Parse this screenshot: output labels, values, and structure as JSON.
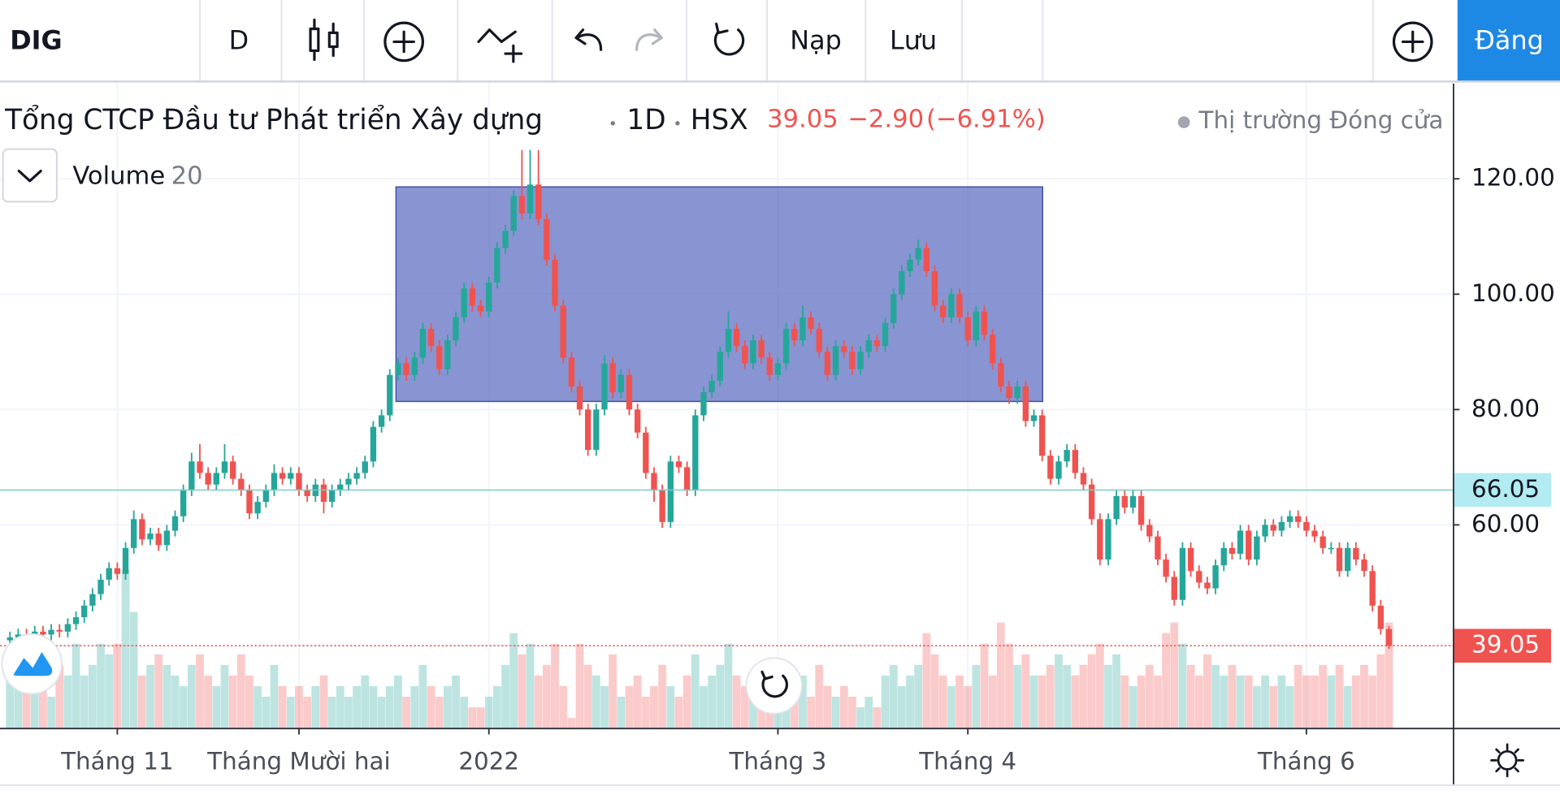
{
  "toolbar": {
    "symbol": "DIG",
    "interval": "D",
    "load": "Nạp",
    "save": "Lưu",
    "signin": "Đăng"
  },
  "chart_data": {
    "type": "candlestick",
    "title": "Tổng CTCP Đầu tư Phát triển Xây dựng",
    "interval": "1D",
    "exchange": "HSX",
    "last": "39.05",
    "change": "−2.90",
    "change_pct": "(−6.91%)",
    "market_status": "Thị trường Đóng cửa",
    "indicator": {
      "name": "Volume",
      "length": 20
    },
    "up_color": "#26a69a",
    "down_color": "#ef5350",
    "grid": true,
    "ylim": [
      24.7,
      136.7
    ],
    "yticks": [
      {
        "value": 60,
        "label": "60.00"
      },
      {
        "value": 80,
        "label": "80.00"
      },
      {
        "value": 100,
        "label": "100.00"
      },
      {
        "value": 120,
        "label": "120.00"
      }
    ],
    "price_lines": [
      {
        "value": 66.05,
        "color": "#80cbc4"
      },
      {
        "value": 39.05,
        "color": "#ef5350"
      }
    ],
    "rectangle": {
      "top": 118.6,
      "bottom": 81.4,
      "color": "#5c6bc0"
    },
    "categories": [
      null,
      null,
      null,
      null,
      null,
      null,
      null,
      null,
      null,
      null,
      null,
      null,
      null,
      "Tháng 11",
      null,
      null,
      null,
      null,
      null,
      null,
      null,
      null,
      null,
      null,
      null,
      null,
      null,
      null,
      null,
      null,
      null,
      null,
      null,
      null,
      null,
      "Tháng Mười hai",
      null,
      null,
      null,
      null,
      null,
      null,
      null,
      null,
      null,
      null,
      null,
      null,
      null,
      null,
      null,
      null,
      null,
      null,
      null,
      null,
      null,
      null,
      "2022",
      null,
      null,
      null,
      null,
      null,
      null,
      null,
      null,
      null,
      null,
      null,
      null,
      null,
      null,
      null,
      null,
      null,
      null,
      null,
      null,
      null,
      null,
      null,
      null,
      null,
      null,
      null,
      null,
      null,
      null,
      null,
      null,
      null,
      null,
      "Tháng 3",
      null,
      null,
      null,
      null,
      null,
      null,
      null,
      null,
      null,
      null,
      null,
      null,
      null,
      null,
      null,
      null,
      null,
      null,
      null,
      null,
      null,
      null,
      "Tháng 4",
      null,
      null,
      null,
      null,
      null,
      null,
      null,
      null,
      null,
      null,
      null,
      null,
      null,
      null,
      null,
      null,
      null,
      null,
      null,
      null,
      null,
      null,
      null,
      null,
      null,
      null,
      null,
      null,
      null,
      null,
      null,
      null,
      null,
      null,
      null,
      null,
      null,
      null,
      null,
      null,
      "Tháng 6",
      null,
      null,
      null,
      null,
      null,
      null,
      null,
      null,
      null,
      null
    ],
    "open": [
      40,
      40.5,
      41,
      40.8,
      41.5,
      41,
      41.8,
      41.5,
      42.8,
      44,
      46,
      48,
      50.5,
      52.5,
      51.5,
      56,
      61,
      57.5,
      58.5,
      56.5,
      59,
      61.5,
      66,
      71,
      69,
      67,
      69,
      71,
      68,
      66,
      62,
      64,
      66,
      69,
      68,
      69,
      66,
      65,
      67,
      64,
      66,
      67,
      68,
      69,
      71,
      77,
      79,
      86,
      88,
      86,
      89,
      94,
      91,
      87,
      92,
      96,
      101,
      98,
      97,
      102,
      108,
      111,
      117,
      114,
      119,
      113,
      106,
      98,
      89,
      84,
      80,
      73,
      80,
      88,
      83,
      86,
      80,
      76,
      69,
      66,
      60.5,
      71,
      70,
      66,
      79,
      83,
      85,
      90,
      94,
      91,
      88,
      92,
      89,
      86,
      88,
      94,
      92,
      96,
      94,
      90,
      86,
      91,
      90,
      87,
      90,
      92,
      91,
      95,
      100,
      104,
      106,
      108,
      104,
      98,
      96,
      100,
      96,
      92,
      97,
      93,
      88,
      84,
      82,
      84,
      78,
      79,
      72,
      68,
      71,
      73,
      69,
      67,
      61,
      54,
      61,
      65,
      63,
      65,
      60,
      58,
      54,
      51,
      47,
      56,
      52,
      50,
      49,
      53,
      56,
      55,
      59,
      54,
      58,
      60,
      59,
      60.5,
      61.5,
      60.5,
      59,
      58,
      56,
      56,
      52,
      56,
      54,
      52,
      46,
      41.95
    ],
    "high": [
      41.5,
      42,
      42,
      42.5,
      42.5,
      42.8,
      42.8,
      43.8,
      45,
      47,
      49,
      51.5,
      53.5,
      53.5,
      57,
      62.5,
      62,
      59.5,
      59.5,
      60,
      62.5,
      67,
      72.5,
      74,
      70,
      70,
      74,
      72,
      69,
      67,
      65,
      67,
      70.5,
      70,
      70,
      70,
      67,
      68,
      68,
      67,
      68,
      69,
      70,
      72,
      78,
      80,
      87,
      89,
      89,
      90,
      95,
      95,
      92,
      93,
      97,
      102,
      102,
      99,
      103,
      109,
      112,
      118,
      125,
      125,
      125,
      114,
      107,
      99,
      90,
      85,
      81,
      81,
      89.5,
      89,
      87,
      87,
      81,
      77,
      70,
      67,
      72,
      72,
      71,
      80,
      84,
      86,
      91,
      97,
      95,
      92,
      93,
      93,
      90,
      89,
      95,
      95,
      98,
      97,
      95,
      91,
      92,
      92,
      91,
      91,
      93,
      93,
      96,
      101,
      105,
      107,
      109.5,
      109,
      105,
      99,
      101,
      101,
      97,
      98,
      98,
      94,
      89,
      85,
      85,
      85,
      80,
      80,
      73,
      72,
      74,
      74,
      70,
      68,
      62,
      62,
      66,
      66,
      66,
      66,
      61,
      59,
      55,
      52,
      57,
      57,
      53,
      51,
      54,
      57,
      57,
      60,
      60,
      59,
      61,
      61,
      61.5,
      62.5,
      62.5,
      61.5,
      60,
      59,
      57,
      57,
      57,
      57,
      55,
      53,
      47,
      42.5
    ],
    "low": [
      39,
      39.5,
      39.8,
      39.8,
      40,
      40,
      40.5,
      40.5,
      41.8,
      43,
      45,
      47,
      49.5,
      50.5,
      50.5,
      55,
      56.5,
      56.5,
      55.5,
      55.5,
      58,
      60.5,
      65,
      68,
      66,
      66,
      68,
      67,
      65,
      61,
      61,
      63,
      65,
      67,
      67,
      65,
      64,
      64,
      62,
      63,
      65,
      66,
      67,
      68,
      70,
      76,
      78,
      85,
      85,
      85,
      88,
      90,
      86,
      86,
      91,
      95,
      97,
      96,
      96,
      101,
      107,
      110,
      113,
      113,
      112,
      105,
      97,
      88,
      83,
      79,
      72,
      72,
      79,
      82,
      82,
      79,
      75,
      68,
      64,
      59.5,
      59.5,
      69,
      65,
      65,
      78,
      82,
      84,
      89,
      90,
      87,
      87,
      88,
      85,
      85,
      87,
      91,
      91,
      93,
      89,
      85,
      85,
      89,
      86,
      86,
      89,
      90,
      90,
      94,
      99,
      103,
      105,
      103,
      97,
      95,
      95,
      95,
      91,
      91,
      92,
      87,
      83,
      81,
      81,
      77,
      77,
      71,
      67,
      67,
      70,
      68,
      66,
      60,
      53,
      53,
      60,
      62,
      62,
      59,
      57,
      53,
      50,
      46,
      46,
      51,
      49,
      48,
      48,
      52,
      54,
      54,
      53,
      53,
      57,
      58,
      58,
      59.5,
      59.5,
      58,
      57,
      55,
      55,
      51,
      51,
      53,
      51,
      45,
      41,
      38.5
    ],
    "close": [
      40.5,
      41,
      40.8,
      41.5,
      41,
      41.8,
      41.5,
      42.8,
      44,
      46,
      48,
      50.5,
      52.5,
      51.5,
      56,
      61,
      57.5,
      58.5,
      56.5,
      59,
      61.5,
      66,
      71,
      69,
      67,
      69,
      71,
      68,
      66,
      62,
      64,
      66,
      69,
      68,
      69,
      66,
      65,
      67,
      64,
      66,
      67,
      68,
      69,
      71,
      77,
      79,
      86,
      88,
      86,
      89,
      94,
      91,
      87,
      92,
      96,
      101,
      98,
      97,
      102,
      108,
      111,
      117,
      114,
      119,
      113,
      106,
      98,
      89,
      84,
      80,
      73,
      80,
      88,
      83,
      86,
      80,
      76,
      69,
      66,
      60.5,
      71,
      70,
      66,
      79,
      83,
      85,
      90,
      94,
      91,
      88,
      92,
      89,
      86,
      88,
      94,
      92,
      96,
      94,
      90,
      86,
      91,
      90,
      87,
      90,
      92,
      91,
      95,
      100,
      104,
      106,
      108,
      104,
      98,
      96,
      100,
      96,
      92,
      97,
      93,
      88,
      84,
      82,
      84,
      78,
      79,
      72,
      68,
      71,
      73,
      69,
      67,
      61,
      54,
      61,
      65,
      63,
      65,
      60,
      58,
      54,
      51,
      47,
      56,
      52,
      50,
      49,
      53,
      56,
      55,
      59,
      54,
      58,
      60,
      59,
      60.5,
      61.5,
      60.5,
      59,
      58,
      56,
      56,
      52,
      56,
      54,
      52,
      46,
      41.95,
      39.05
    ],
    "volume": [
      5,
      6,
      4,
      7,
      5,
      3,
      6,
      5,
      8,
      5,
      6,
      8,
      7,
      8,
      15,
      11,
      5,
      6,
      7,
      6,
      5,
      4,
      6,
      7,
      5,
      4,
      6,
      5,
      7,
      5,
      4,
      3,
      6,
      4,
      3,
      4,
      3,
      4,
      5,
      3,
      4,
      3,
      4,
      5,
      4,
      3,
      4,
      5,
      3,
      4,
      6,
      4,
      3,
      4,
      5,
      3,
      2,
      2,
      3,
      4,
      6,
      9,
      7,
      8,
      5,
      6,
      8,
      4,
      1,
      8,
      6,
      5,
      4,
      7,
      3,
      4,
      5,
      3,
      4,
      6,
      4,
      3,
      5,
      7,
      4,
      5,
      6,
      8,
      5,
      4,
      5,
      4,
      3,
      4,
      5,
      4,
      5,
      3,
      6,
      4,
      3,
      4,
      3,
      2,
      3,
      2,
      5,
      6,
      4,
      5,
      6,
      9,
      7,
      5,
      4,
      5,
      4,
      6,
      8,
      5,
      10,
      8,
      6,
      7,
      5,
      5,
      6,
      7,
      6,
      5,
      6,
      7,
      8,
      6,
      7,
      5,
      4,
      5,
      6,
      5,
      9,
      10,
      8,
      6,
      5,
      7,
      6,
      5,
      6,
      5,
      5,
      4,
      5,
      4,
      5,
      4,
      6,
      5,
      5,
      6,
      5,
      6,
      4,
      5,
      6,
      5,
      7,
      10
    ]
  }
}
